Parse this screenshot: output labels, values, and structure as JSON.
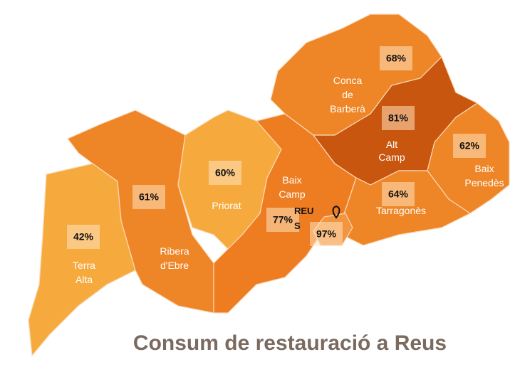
{
  "map": {
    "title": "Consum de restauració a Reus",
    "regions": [
      {
        "name": "Terra Alta",
        "value": 42,
        "value_label": "42%",
        "color": "#f6aa3e"
      },
      {
        "name": "Ribera d'Ebre",
        "value": 61,
        "value_label": "61%",
        "color": "#ee8526"
      },
      {
        "name": "Priorat",
        "value": 60,
        "value_label": "60%",
        "color": "#f6aa3e"
      },
      {
        "name": "Baix Camp",
        "value": 77,
        "value_label": "77%",
        "color": "#ee7d22"
      },
      {
        "name": "Conca de Barberà",
        "value": 68,
        "value_label": "68%",
        "color": "#ee8526"
      },
      {
        "name": "Alt Camp",
        "value": 81,
        "value_label": "81%",
        "color": "#c9560f"
      },
      {
        "name": "Baix Penedès",
        "value": 62,
        "value_label": "62%",
        "color": "#ee8526"
      },
      {
        "name": "Tarragonès",
        "value": 64,
        "value_label": "64%",
        "color": "#ee8526"
      },
      {
        "name": "REUS",
        "value": 97,
        "value_label": "97%",
        "color": "#f29540"
      }
    ]
  }
}
